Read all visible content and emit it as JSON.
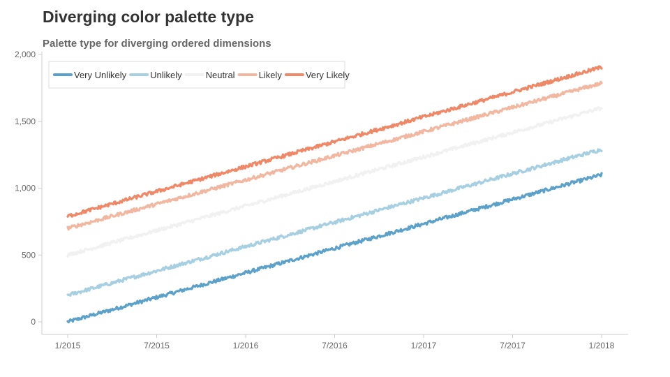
{
  "chart_data": {
    "type": "line",
    "title": "Diverging color palette type",
    "subtitle": "Palette type for diverging ordered dimensions",
    "xlabel": "",
    "ylabel": "",
    "x_range": [
      "2015-01-01",
      "2018-01-01"
    ],
    "x_ticks": [
      "1/2015",
      "7/2015",
      "1/2016",
      "7/2016",
      "1/2017",
      "7/2017",
      "1/2018"
    ],
    "ylim": [
      0,
      2000
    ],
    "y_ticks": [
      "0",
      "500",
      "1,000",
      "1,500",
      "2,000"
    ],
    "y_tick_values": [
      0,
      500,
      1000,
      1500,
      2000
    ],
    "grid": false,
    "legend_position": "top-left",
    "series": [
      {
        "name": "Very Unlikely",
        "color": "#5ba1c9",
        "x": [
          "2015-01-01",
          "2018-01-01"
        ],
        "values": [
          0,
          1100
        ]
      },
      {
        "name": "Unlikely",
        "color": "#a6cfe2",
        "x": [
          "2015-01-01",
          "2018-01-01"
        ],
        "values": [
          200,
          1290
        ]
      },
      {
        "name": "Neutral",
        "color": "#f1f1f1",
        "x": [
          "2015-01-01",
          "2018-01-01"
        ],
        "values": [
          500,
          1600
        ]
      },
      {
        "name": "Likely",
        "color": "#f2b7a0",
        "x": [
          "2015-01-01",
          "2018-01-01"
        ],
        "values": [
          700,
          1785
        ]
      },
      {
        "name": "Very Likely",
        "color": "#ee8866",
        "x": [
          "2015-01-01",
          "2018-01-01"
        ],
        "values": [
          790,
          1905
        ]
      }
    ]
  }
}
